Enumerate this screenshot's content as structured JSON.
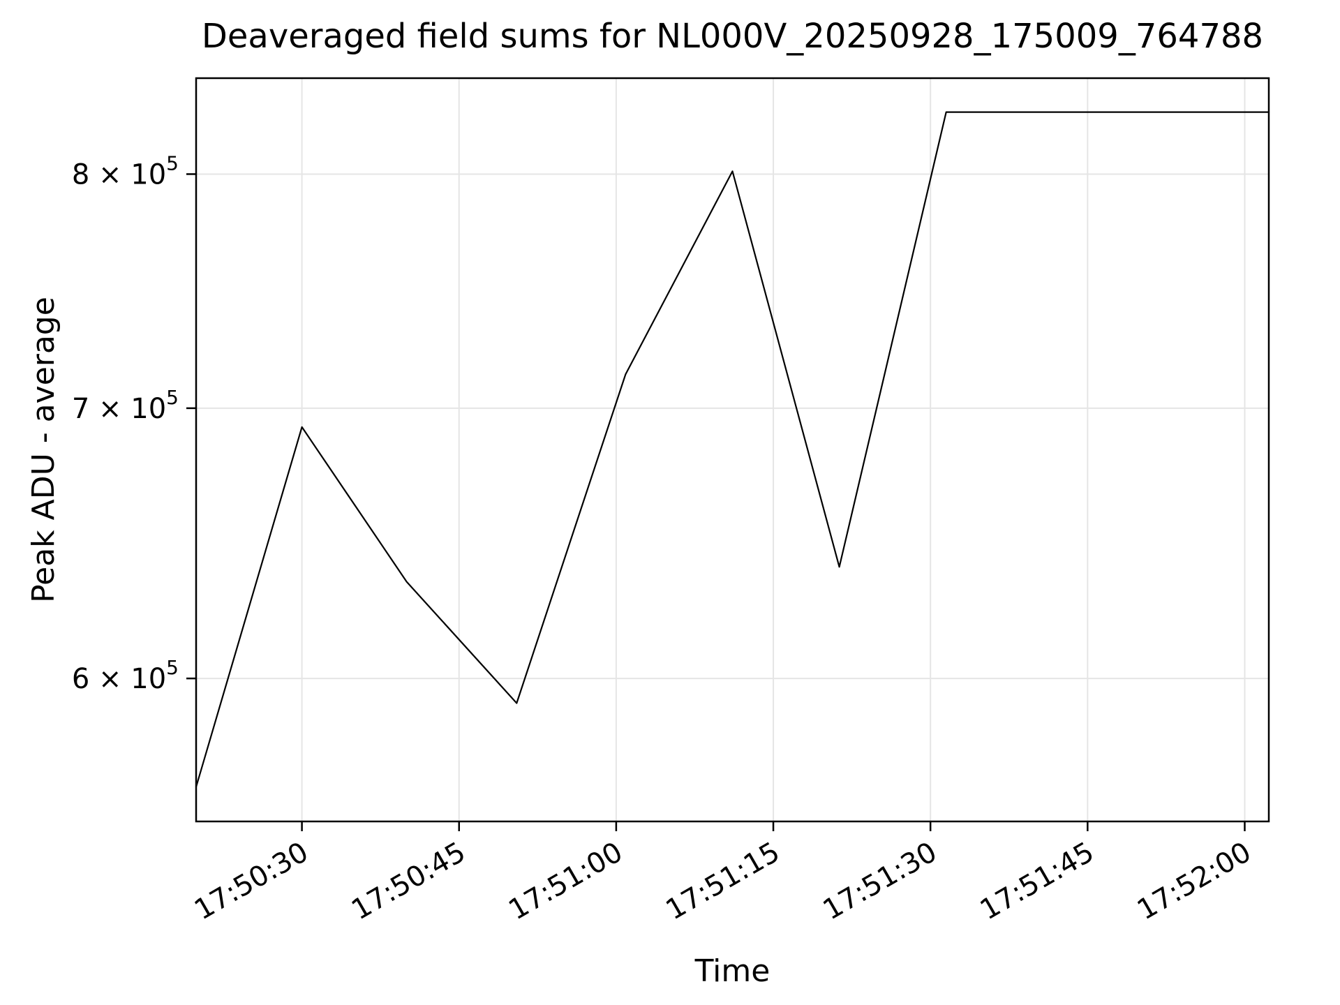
{
  "figure": {
    "background": "#ffffff"
  },
  "chart_data": {
    "type": "line",
    "title": "Deaveraged field sums for NL000V_20250928_175009_764788",
    "xlabel": "Time",
    "ylabel": "Peak ADU - average",
    "y_scale": "log",
    "grid": true,
    "legend": null,
    "line_color": "#000000",
    "grid_color": "#e5e5e5",
    "spine_color": "#000000",
    "xlim_seconds_after_17_50_00": [
      19.9,
      122.3
    ],
    "ylim": [
      553000,
      845000
    ],
    "x_ticks": [
      {
        "s": 30,
        "label": "17:50:30"
      },
      {
        "s": 45,
        "label": "17:50:45"
      },
      {
        "s": 60,
        "label": "17:51:00"
      },
      {
        "s": 75,
        "label": "17:51:15"
      },
      {
        "s": 90,
        "label": "17:51:30"
      },
      {
        "s": 105,
        "label": "17:51:45"
      },
      {
        "s": 120,
        "label": "17:52:00"
      }
    ],
    "y_ticks": [
      {
        "value": 600000,
        "mantissa": "6",
        "base": "10",
        "exp": "5"
      },
      {
        "value": 700000,
        "mantissa": "7",
        "base": "10",
        "exp": "5"
      },
      {
        "value": 800000,
        "mantissa": "8",
        "base": "10",
        "exp": "5"
      }
    ],
    "points": [
      {
        "time": "17:50:19.9",
        "s": 19.9,
        "value": 564000
      },
      {
        "time": "17:50:30.0",
        "s": 30.0,
        "value": 692500
      },
      {
        "time": "17:50:40.0",
        "s": 40.0,
        "value": 634000
      },
      {
        "time": "17:50:50.5",
        "s": 50.5,
        "value": 591600
      },
      {
        "time": "17:51:00.9",
        "s": 60.9,
        "value": 713700
      },
      {
        "time": "17:51:11.1",
        "s": 71.1,
        "value": 801300
      },
      {
        "time": "17:51:21.3",
        "s": 81.3,
        "value": 639400
      },
      {
        "time": "17:51:31.5",
        "s": 91.5,
        "value": 828800
      },
      {
        "time": "17:52:02.3",
        "s": 122.3,
        "value": 828800
      }
    ]
  }
}
